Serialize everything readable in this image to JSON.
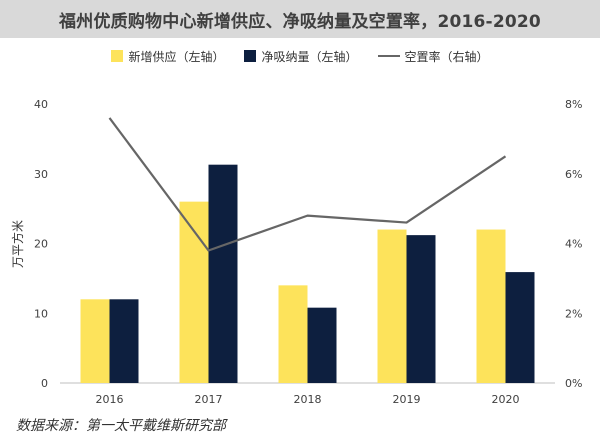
{
  "chart_data": {
    "type": "bar+line",
    "title": "福州优质购物中心新增供应、净吸纳量及空置率，2016-2020",
    "categories": [
      "2016",
      "2017",
      "2018",
      "2019",
      "2020"
    ],
    "series": [
      {
        "name": "新增供应（左轴）",
        "kind": "bar",
        "axis": "left",
        "color": "#fde35b",
        "values": [
          12,
          26,
          14,
          22,
          22
        ]
      },
      {
        "name": "净吸纳量（左轴）",
        "kind": "bar",
        "axis": "left",
        "color": "#0d1f3f",
        "values": [
          12,
          31.3,
          10.8,
          21.2,
          15.9
        ]
      },
      {
        "name": "空置率（右轴）",
        "kind": "line",
        "axis": "right",
        "color": "#666666",
        "values": [
          7.6,
          3.8,
          4.8,
          4.6,
          6.5
        ]
      }
    ],
    "ylabel": "万平方米",
    "ylim": [
      0,
      40
    ],
    "yticks": [
      "0",
      "10",
      "20",
      "30",
      "40"
    ],
    "y2lim": [
      0,
      8
    ],
    "y2ticks": [
      "0%",
      "2%",
      "4%",
      "6%",
      "8%"
    ],
    "grid": false,
    "legend_position": "top"
  },
  "source": "数据来源：第一太平戴维斯研究部"
}
